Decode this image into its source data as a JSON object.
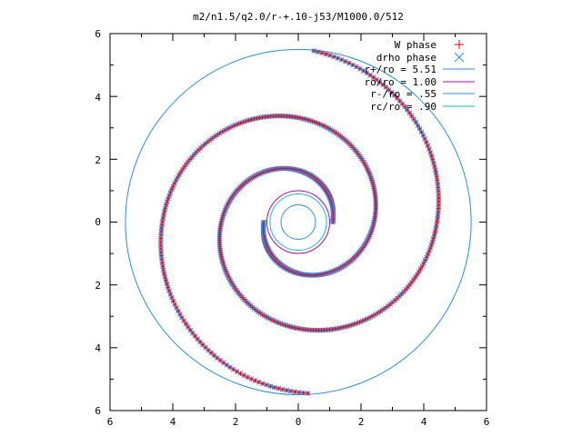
{
  "chart_data": {
    "type": "scatter",
    "title": "m2/n1.5/q2.0/r-+.10-j53/M1000.0/512",
    "xlabel": "",
    "ylabel": "",
    "xlim": [
      -6,
      6
    ],
    "ylim": [
      -6,
      6
    ],
    "x_tick_labels": [
      "6",
      "4",
      "2",
      "0",
      "2",
      "4",
      "6"
    ],
    "y_tick_labels": [
      "6",
      "4",
      "2",
      "0",
      "2",
      "4",
      "6"
    ],
    "grid": false,
    "legend_position": "top-right",
    "series": [
      {
        "name": "W phase",
        "marker": "plus",
        "color": "#ff0000"
      },
      {
        "name": "drho phase",
        "marker": "cross",
        "color": "#1e90ff"
      },
      {
        "name": "r+/ro = 5.51",
        "marker": "circle",
        "radius": 5.51,
        "color": "#1e90ff"
      },
      {
        "name": "ro/ro = 1.00",
        "marker": "circle",
        "radius": 1.0,
        "color": "#c000c0"
      },
      {
        "name": "r-/ro = .55",
        "marker": "circle",
        "radius": 0.55,
        "color": "#1e90ff"
      },
      {
        "name": "rc/ro = .90",
        "marker": "circle",
        "radius": 0.9,
        "color": "#00c8c8"
      }
    ],
    "spiral_arms": [
      {
        "start_point": [
          1.1,
          0.0
        ],
        "end_point": [
          0.5,
          5.45
        ],
        "turns": 2.0
      },
      {
        "start_point": [
          -1.1,
          0.0
        ],
        "end_point": [
          0.3,
          -5.45
        ],
        "turns": 2.0
      }
    ]
  }
}
